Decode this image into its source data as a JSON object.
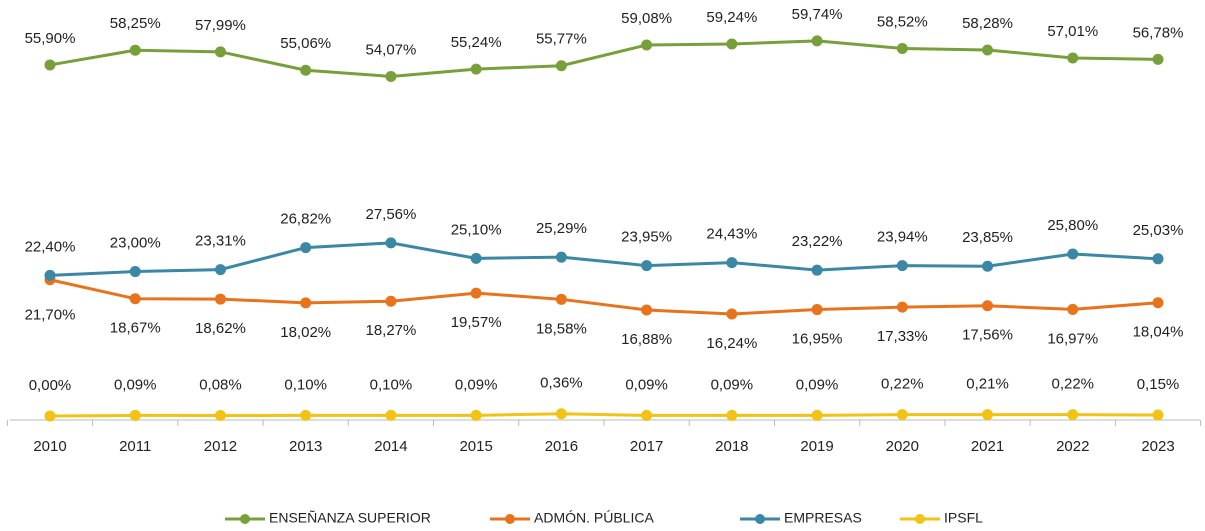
{
  "chart_data": {
    "type": "line",
    "categories": [
      "2010",
      "2011",
      "2012",
      "2013",
      "2014",
      "2015",
      "2016",
      "2017",
      "2018",
      "2019",
      "2020",
      "2021",
      "2022",
      "2023"
    ],
    "ylim": [
      0,
      60
    ],
    "series": [
      {
        "name": "ENSEÑANZA SUPERIOR",
        "color": "#77a03a",
        "values": [
          55.9,
          58.25,
          57.99,
          55.06,
          54.07,
          55.24,
          55.77,
          59.08,
          59.24,
          59.74,
          58.52,
          58.28,
          57.01,
          56.78
        ],
        "value_labels": [
          "55,90%",
          "58,25%",
          "57,99%",
          "55,06%",
          "54,07%",
          "55,24%",
          "55,77%",
          "59,08%",
          "59,24%",
          "59,74%",
          "58,52%",
          "58,28%",
          "57,01%",
          "56,78%"
        ]
      },
      {
        "name": "ADMÓN. PÚBLICA",
        "color": "#e8731c",
        "values": [
          21.7,
          18.67,
          18.62,
          18.02,
          18.27,
          19.57,
          18.58,
          16.88,
          16.24,
          16.95,
          17.33,
          17.56,
          16.97,
          18.04
        ],
        "value_labels": [
          "21,70%",
          "18,67%",
          "18,62%",
          "18,02%",
          "18,27%",
          "19,57%",
          "18,58%",
          "16,88%",
          "16,24%",
          "16,95%",
          "17,33%",
          "17,56%",
          "16,97%",
          "18,04%"
        ]
      },
      {
        "name": "EMPRESAS",
        "color": "#3a87a6",
        "values": [
          22.4,
          23.0,
          23.31,
          26.82,
          27.56,
          25.1,
          25.29,
          23.95,
          24.43,
          23.22,
          23.94,
          23.85,
          25.8,
          25.03
        ],
        "value_labels": [
          "22,40%",
          "23,00%",
          "23,31%",
          "26,82%",
          "27,56%",
          "25,10%",
          "25,29%",
          "23,95%",
          "24,43%",
          "23,22%",
          "23,94%",
          "23,85%",
          "25,80%",
          "25,03%"
        ]
      },
      {
        "name": "IPSFL",
        "color": "#f2c314",
        "values": [
          0.0,
          0.09,
          0.08,
          0.1,
          0.1,
          0.09,
          0.36,
          0.09,
          0.09,
          0.09,
          0.22,
          0.21,
          0.22,
          0.15
        ],
        "value_labels": [
          "0,00%",
          "0,09%",
          "0,08%",
          "0,10%",
          "0,10%",
          "0,09%",
          "0,36%",
          "0,09%",
          "0,09%",
          "0,09%",
          "0,22%",
          "0,21%",
          "0,22%",
          "0,15%"
        ]
      }
    ]
  }
}
